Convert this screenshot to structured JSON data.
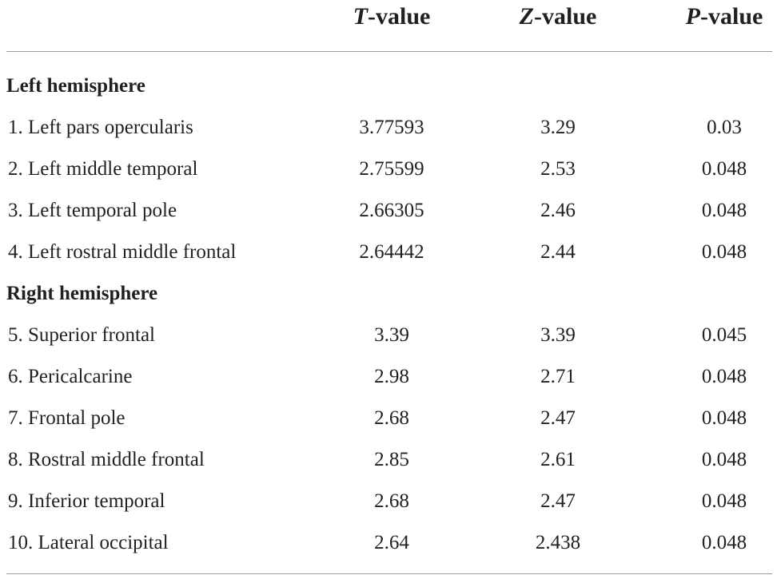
{
  "header": {
    "t_italic": "T",
    "t_suffix": "-value",
    "z_italic": "Z",
    "z_suffix": "-value",
    "p_italic": "P",
    "p_suffix": "-value"
  },
  "sections": [
    {
      "label": "Left hemisphere",
      "rows": [
        {
          "name": "1. Left pars opercularis",
          "t": "3.77593",
          "z": "3.29",
          "p": "0.03"
        },
        {
          "name": "2. Left middle temporal",
          "t": "2.75599",
          "z": "2.53",
          "p": "0.048"
        },
        {
          "name": "3. Left temporal pole",
          "t": "2.66305",
          "z": "2.46",
          "p": "0.048"
        },
        {
          "name": "4. Left rostral middle frontal",
          "t": "2.64442",
          "z": "2.44",
          "p": "0.048"
        }
      ]
    },
    {
      "label": "Right hemisphere",
      "rows": [
        {
          "name": "5. Superior frontal",
          "t": "3.39",
          "z": "3.39",
          "p": "0.045"
        },
        {
          "name": "6. Pericalcarine",
          "t": "2.98",
          "z": "2.71",
          "p": "0.048"
        },
        {
          "name": "7. Frontal pole",
          "t": "2.68",
          "z": "2.47",
          "p": "0.048"
        },
        {
          "name": "8. Rostral middle frontal",
          "t": "2.85",
          "z": "2.61",
          "p": "0.048"
        },
        {
          "name": "9. Inferior temporal",
          "t": "2.68",
          "z": "2.47",
          "p": "0.048"
        },
        {
          "name": "10. Lateral occipital",
          "t": "2.64",
          "z": "2.438",
          "p": "0.048"
        }
      ]
    }
  ]
}
